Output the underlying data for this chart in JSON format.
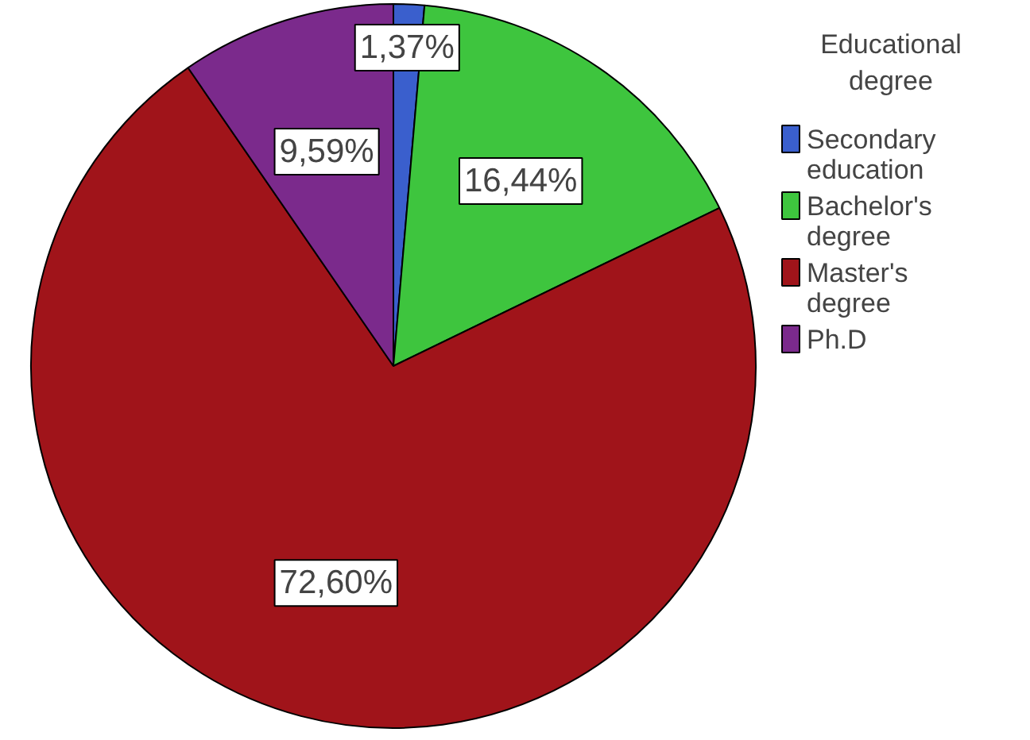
{
  "chart_data": {
    "type": "pie",
    "legend_title": "Educational degree",
    "categories": [
      "Secondary education",
      "Bachelor's degree",
      "Master's degree",
      "Ph.D"
    ],
    "values": [
      1.37,
      16.44,
      72.6,
      9.59
    ],
    "colors": [
      "#3a5fcd",
      "#3ec53e",
      "#a0141a",
      "#7b2a8c"
    ],
    "value_labels": [
      "1,37%",
      "16,44%",
      "72,60%",
      "9,59%"
    ],
    "legend": "right"
  }
}
